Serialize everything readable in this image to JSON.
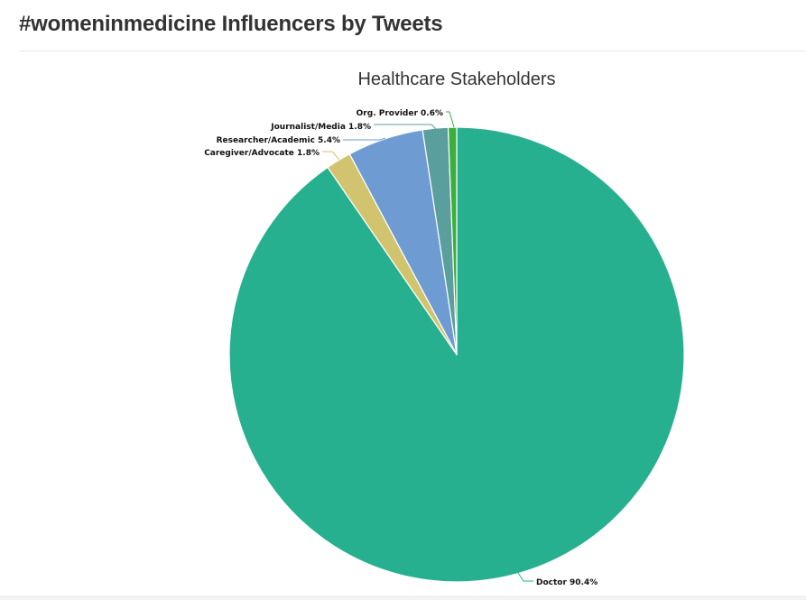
{
  "header": {
    "title": "#womeninmedicine Influencers by Tweets"
  },
  "chart_data": {
    "type": "pie",
    "title": "Healthcare Stakeholders",
    "categories": [
      "Doctor",
      "Caregiver/Advocate",
      "Researcher/Academic",
      "Journalist/Media",
      "Org. Provider"
    ],
    "values": [
      90.4,
      1.8,
      5.4,
      1.8,
      0.6
    ],
    "labels": [
      "Doctor 90.4%",
      "Caregiver/Advocate 1.8%",
      "Researcher/Academic 5.4%",
      "Journalist/Media 1.8%",
      "Org. Provider 0.6%"
    ],
    "colors": [
      "#27b08f",
      "#d2c46f",
      "#6e9bd1",
      "#5b9e9e",
      "#3cae3c"
    ]
  }
}
